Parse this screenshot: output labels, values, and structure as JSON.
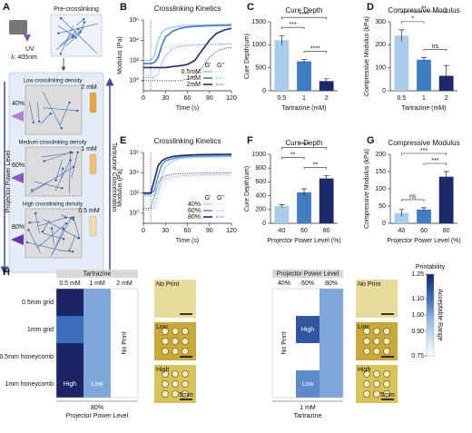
{
  "diagram": {
    "label": "A",
    "uv": "UV",
    "wavelength": "λ: 405nm",
    "pre": "Pre-crosslinking",
    "densities": [
      "Low crosslinking density",
      "Medium crosslinking density",
      "High crosslinking density"
    ],
    "power_levels": [
      "40%",
      "60%",
      "80%"
    ],
    "concentrations": [
      "2 mM",
      "1 mM",
      "0.5 mM"
    ],
    "left_arrow": "Projector Power Level",
    "right_arrow": "Tartrazine Concentration"
  },
  "photos": {
    "left": [
      "No Print",
      "Low",
      "High"
    ],
    "right": [
      "No Print",
      "Low",
      "High"
    ],
    "scale_label": "5mm"
  },
  "chart_data": [
    {
      "type": "line",
      "label": "B",
      "title": "Crosslinking Kinetics",
      "xlabel": "Time (s)",
      "ylabel": "Modulus (Pa)",
      "log_y": true,
      "legend": "lower right",
      "legend_columns": [
        "G'",
        "G''"
      ],
      "dashed_x": 10,
      "xlim": [
        0,
        120
      ],
      "xticks": [
        0,
        30,
        60,
        90,
        120
      ],
      "ylim": [
        0.1,
        1000000
      ],
      "yticks": [
        {
          "value": 1,
          "label": "10⁰"
        },
        {
          "value": 100,
          "label": "10²"
        },
        {
          "value": 10000,
          "label": "10⁴"
        },
        {
          "value": 1000000,
          "label": "10⁶"
        }
      ],
      "x": [
        0,
        10,
        15,
        20,
        25,
        30,
        40,
        50,
        60,
        70,
        80,
        90,
        100,
        110,
        120
      ],
      "series": [
        {
          "name": "0.5mM",
          "color": "#a9cde9",
          "g_prime": [
            100,
            100,
            300,
            10000,
            60000,
            120000,
            200000,
            250000,
            280000,
            300000,
            320000,
            330000,
            340000,
            350000,
            360000
          ],
          "g_double_prime": [
            3,
            3,
            10,
            300,
            1000,
            2000,
            3000,
            3500,
            4000,
            4200,
            4400,
            4500,
            4600,
            4700,
            4800
          ]
        },
        {
          "name": "1mM",
          "color": "#3f7cc0",
          "g_prime": [
            50,
            50,
            60,
            200,
            3000,
            20000,
            80000,
            150000,
            200000,
            230000,
            250000,
            270000,
            280000,
            290000,
            300000
          ],
          "g_double_prime": [
            2,
            2,
            2,
            5,
            50,
            300,
            1500,
            2500,
            3000,
            3300,
            3500,
            3700,
            3800,
            3900,
            4000
          ]
        },
        {
          "name": "2mM",
          "color": "#1c2a6b",
          "g_prime": [
            20,
            20,
            20,
            20,
            20,
            20,
            25,
            30,
            40,
            100,
            1000,
            10000,
            50000,
            100000,
            150000
          ],
          "g_double_prime": [
            1,
            1,
            1,
            1,
            1,
            1,
            1,
            1,
            1.5,
            3,
            20,
            200,
            800,
            1500,
            2000
          ]
        }
      ]
    },
    {
      "type": "bar",
      "label": "C",
      "title": "Cure Depth",
      "xlabel": "Tartrazine (mM)",
      "ylabel": "Cure Depth(um)",
      "categories": [
        "0.5",
        "1",
        "2"
      ],
      "values": [
        1100,
        640,
        210
      ],
      "errors": [
        100,
        40,
        50
      ],
      "colors": [
        "#a9cde9",
        "#3f7cc0",
        "#1c2a6b"
      ],
      "ylim": [
        0,
        1500
      ],
      "yticks": [
        0,
        500,
        1000,
        1500
      ],
      "significance": [
        {
          "pair": [
            1,
            2
          ],
          "label": "****"
        },
        {
          "pair": [
            0,
            1
          ],
          "label": "***"
        },
        {
          "pair": [
            0,
            2
          ],
          "label": "****"
        }
      ]
    },
    {
      "type": "bar",
      "label": "D",
      "title": "Compressive Modulus",
      "xlabel": "Tartrazine (mM)",
      "ylabel": "Compressive Modulus (kPa)",
      "categories": [
        "0.5",
        "1",
        "2"
      ],
      "values": [
        240,
        135,
        65
      ],
      "errors": [
        25,
        10,
        45
      ],
      "colors": [
        "#a9cde9",
        "#3f7cc0",
        "#1c2a6b"
      ],
      "ylim": [
        0,
        300
      ],
      "yticks": [
        0,
        100,
        200,
        300
      ],
      "significance": [
        {
          "pair": [
            1,
            2
          ],
          "label": "ns"
        },
        {
          "pair": [
            0,
            1
          ],
          "label": "*"
        },
        {
          "pair": [
            0,
            2
          ],
          "label": "**"
        }
      ]
    },
    {
      "type": "line",
      "label": "E",
      "title": "Crosslinking Kinetics",
      "xlabel": "Time (s)",
      "ylabel": "Modulus (Pa)",
      "log_y": true,
      "legend": "lower right",
      "legend_columns": [
        "G'",
        "G''"
      ],
      "dashed_x": 10,
      "xlim": [
        0,
        120
      ],
      "xticks": [
        0,
        30,
        60,
        90,
        120
      ],
      "ylim": [
        0.1,
        1000000
      ],
      "yticks": [
        {
          "value": 1,
          "label": "10⁰"
        },
        {
          "value": 100,
          "label": "10²"
        },
        {
          "value": 10000,
          "label": "10⁴"
        },
        {
          "value": 1000000,
          "label": "10⁶"
        }
      ],
      "x": [
        0,
        10,
        15,
        20,
        25,
        30,
        40,
        50,
        60,
        70,
        80,
        90,
        100,
        110,
        120
      ],
      "series": [
        {
          "name": "40%",
          "color": "#b9d7ee",
          "g_prime": [
            50,
            50,
            60,
            300,
            5000,
            40000,
            150000,
            250000,
            300000,
            330000,
            350000,
            360000,
            370000,
            380000,
            390000
          ],
          "g_double_prime": [
            1.5,
            1.5,
            2,
            10,
            100,
            800,
            2500,
            3500,
            4000,
            4300,
            4500,
            4600,
            4700,
            4800,
            4900
          ]
        },
        {
          "name": "60%",
          "color": "#5b96cf",
          "g_prime": [
            80,
            80,
            200,
            5000,
            60000,
            150000,
            250000,
            350000,
            400000,
            430000,
            450000,
            460000,
            470000,
            480000,
            490000
          ],
          "g_double_prime": [
            2,
            2,
            5,
            100,
            1000,
            2500,
            4000,
            5000,
            5500,
            6000,
            6200,
            6400,
            6500,
            6600,
            6700
          ]
        },
        {
          "name": "80%",
          "color": "#1c2a6b",
          "g_prime": [
            100,
            100,
            2000,
            50000,
            150000,
            250000,
            400000,
            500000,
            550000,
            600000,
            620000,
            640000,
            650000,
            660000,
            670000
          ],
          "g_double_prime": [
            3,
            3,
            50,
            1000,
            3000,
            5000,
            7000,
            8000,
            8500,
            9000,
            9200,
            9400,
            9500,
            9600,
            9700
          ]
        }
      ]
    },
    {
      "type": "bar",
      "label": "F",
      "title": "Cure Depth",
      "xlabel": "Projector Power Level (%)",
      "ylabel": "Cure Depth(um)",
      "categories": [
        "40",
        "60",
        "80"
      ],
      "values": [
        250,
        450,
        650
      ],
      "errors": [
        20,
        50,
        40
      ],
      "colors": [
        "#a9cde9",
        "#3f7cc0",
        "#1c2a6b"
      ],
      "ylim": [
        0,
        1000
      ],
      "yticks": [
        0,
        200,
        400,
        600,
        800,
        1000
      ],
      "significance": [
        {
          "pair": [
            1,
            2
          ],
          "label": "**"
        },
        {
          "pair": [
            0,
            1
          ],
          "label": "**"
        },
        {
          "pair": [
            0,
            2
          ],
          "label": "****"
        }
      ]
    },
    {
      "type": "bar",
      "label": "G",
      "title": "Compressive Modulus",
      "xlabel": "Projector Power Level (%)",
      "ylabel": "Compressive Modulus (kPa)",
      "categories": [
        "40",
        "60",
        "80"
      ],
      "values": [
        30,
        40,
        135
      ],
      "errors": [
        10,
        5,
        15
      ],
      "colors": [
        "#a9cde9",
        "#3f7cc0",
        "#1c2a6b"
      ],
      "ylim": [
        0,
        200
      ],
      "yticks": [
        0,
        50,
        100,
        150,
        200
      ],
      "significance": [
        {
          "pair": [
            0,
            1
          ],
          "label": "ns"
        },
        {
          "pair": [
            1,
            2
          ],
          "label": "***"
        },
        {
          "pair": [
            0,
            2
          ],
          "label": "***"
        }
      ]
    },
    {
      "type": "heatmap",
      "label": "H",
      "header": "Tartrazine",
      "columns": [
        "0.5 mM",
        "1 mM",
        "2 mM"
      ],
      "rows": [
        "0.5mm grid",
        "1mm grid",
        "0.5mm honeycomb",
        "1mm honeycomb"
      ],
      "values": [
        [
          1.25,
          1.0,
          null
        ],
        [
          1.1,
          1.0,
          null
        ],
        [
          1.25,
          1.0,
          null
        ],
        [
          1.25,
          1.0,
          null
        ]
      ],
      "na_label": "No Print",
      "footer": [
        "80%",
        "Projector Power Level"
      ],
      "annotations": [
        {
          "row": 3,
          "col": 0,
          "text": "High"
        },
        {
          "row": 3,
          "col": 1,
          "text": "Low"
        }
      ]
    },
    {
      "type": "heatmap",
      "header": "Projector Power Level",
      "columns": [
        "40%",
        "60%",
        "80%"
      ],
      "values": [
        [
          null,
          0.75,
          1.0
        ],
        [
          null,
          1.15,
          1.0
        ],
        [
          null,
          0.75,
          1.0
        ],
        [
          null,
          1.05,
          1.0
        ]
      ],
      "na_label": "No Print",
      "footer": [
        "1 mM",
        "Tartrazine"
      ],
      "annotations": [
        {
          "row": 1,
          "col": 1,
          "text": "High"
        },
        {
          "row": 3,
          "col": 1,
          "text": "Low"
        }
      ],
      "colorbar": {
        "label": "Printability",
        "range_label": "Acceptable Range",
        "lim": [
          0.75,
          1.25
        ],
        "ticks": [
          1.25,
          {
            "value": 1.1,
            "label": "1.10"
          },
          {
            "value": 1,
            "label": "1.00"
          },
          {
            "value": 0.9,
            "label": "0.90"
          },
          0.75
        ]
      }
    }
  ]
}
